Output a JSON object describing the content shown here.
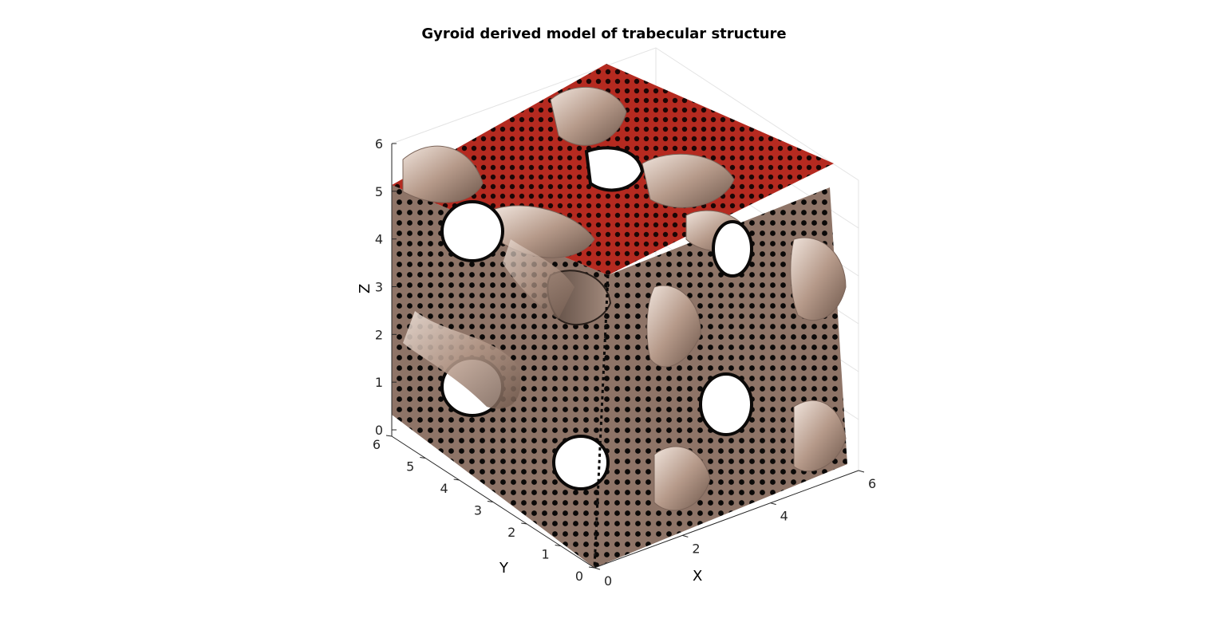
{
  "chart_data": {
    "type": "3d-surface",
    "title": "Gyroid derived model of trabecular structure",
    "xlabel": "X",
    "ylabel": "Y",
    "zlabel": "Z",
    "xlim": [
      0,
      6
    ],
    "ylim": [
      0,
      6
    ],
    "zlim": [
      0,
      6
    ],
    "xticks": [
      "0",
      "2",
      "4",
      "6"
    ],
    "yticks": [
      "0",
      "1",
      "2",
      "3",
      "4",
      "5",
      "6"
    ],
    "zticks": [
      "0",
      "1",
      "2",
      "3",
      "4",
      "5",
      "6"
    ],
    "grid": true,
    "colors": {
      "surface": "#a08474",
      "boundary_top": "#c0281c",
      "boundary_nodes": "#000000",
      "grid": "#e3e3e3"
    }
  }
}
